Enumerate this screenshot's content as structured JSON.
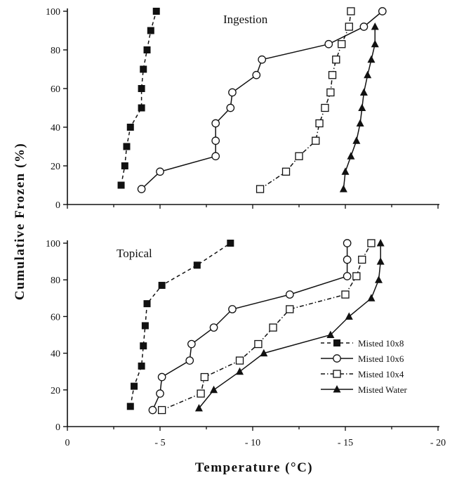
{
  "chart_data": {
    "type": "line",
    "xlabel": "Temperature (°C)",
    "ylabel": "Cumulative Frozen (%)",
    "legend_position": "lower-right (bottom panel)",
    "x_ticks": [
      "0",
      "- 5",
      "- 10",
      "- 15",
      "- 20"
    ],
    "y_ticks": [
      "0",
      "20",
      "40",
      "60",
      "80",
      "100"
    ],
    "series_styles": [
      {
        "name": "Misted 10x8",
        "marker": "filled-square",
        "line": "dashed"
      },
      {
        "name": "Misted 10x6",
        "marker": "open-circle",
        "line": "solid"
      },
      {
        "name": "Misted 10x4",
        "marker": "open-square",
        "line": "dash-dot"
      },
      {
        "name": "Misted Water",
        "marker": "filled-triangle",
        "line": "solid"
      }
    ],
    "panels": [
      {
        "title": "Ingestion",
        "xlim": [
          0,
          -20
        ],
        "ylim": [
          0,
          100
        ],
        "series": [
          {
            "name": "Misted 10x8",
            "x": [
              -2.9,
              -3.1,
              -3.2,
              -3.4,
              -4.0,
              -4.0,
              -4.1,
              -4.3,
              -4.5,
              -4.8
            ],
            "y": [
              10,
              20,
              30,
              40,
              50,
              60,
              70,
              80,
              90,
              100
            ]
          },
          {
            "name": "Misted 10x6",
            "x": [
              -4.0,
              -5.0,
              -8.0,
              -8.0,
              -8.0,
              -8.8,
              -8.9,
              -10.2,
              -10.5,
              -14.1,
              -16.0,
              -17.0
            ],
            "y": [
              8,
              17,
              25,
              33,
              42,
              50,
              58,
              67,
              75,
              83,
              92,
              100
            ]
          },
          {
            "name": "Misted 10x4",
            "x": [
              -10.4,
              -11.8,
              -12.5,
              -13.4,
              -13.6,
              -13.9,
              -14.2,
              -14.3,
              -14.5,
              -14.8,
              -15.2,
              -15.3
            ],
            "y": [
              8,
              17,
              25,
              33,
              42,
              50,
              58,
              67,
              75,
              83,
              92,
              100
            ]
          },
          {
            "name": "Misted Water",
            "x": [
              -14.9,
              -15.0,
              -15.3,
              -15.6,
              -15.8,
              -15.9,
              -16.0,
              -16.2,
              -16.4,
              -16.6,
              -16.6
            ],
            "y": [
              8,
              17,
              25,
              33,
              42,
              50,
              58,
              67,
              75,
              83,
              92
            ]
          }
        ]
      },
      {
        "title": "Topical",
        "xlim": [
          0,
          -20
        ],
        "ylim": [
          0,
          100
        ],
        "series": [
          {
            "name": "Misted 10x8",
            "x": [
              -3.4,
              -3.6,
              -4.0,
              -4.1,
              -4.2,
              -4.3,
              -5.1,
              -7.0,
              -8.8
            ],
            "y": [
              11,
              22,
              33,
              44,
              55,
              67,
              77,
              88,
              100
            ]
          },
          {
            "name": "Misted 10x6",
            "x": [
              -4.6,
              -5.0,
              -5.1,
              -6.6,
              -6.7,
              -7.9,
              -8.9,
              -12.0,
              -15.1,
              -15.1,
              -15.1
            ],
            "y": [
              9,
              18,
              27,
              36,
              45,
              54,
              64,
              72,
              82,
              91,
              100
            ]
          },
          {
            "name": "Misted 10x4",
            "x": [
              -5.1,
              -7.2,
              -7.4,
              -9.3,
              -10.3,
              -11.1,
              -12.0,
              -15.0,
              -15.6,
              -15.9,
              -16.4
            ],
            "y": [
              9,
              18,
              27,
              36,
              45,
              54,
              64,
              72,
              82,
              91,
              100
            ]
          },
          {
            "name": "Misted Water",
            "x": [
              -7.1,
              -7.9,
              -9.3,
              -10.6,
              -14.2,
              -15.2,
              -16.4,
              -16.8,
              -16.9,
              -16.9
            ],
            "y": [
              10,
              20,
              30,
              40,
              50,
              60,
              70,
              80,
              90,
              100
            ]
          }
        ]
      }
    ]
  }
}
